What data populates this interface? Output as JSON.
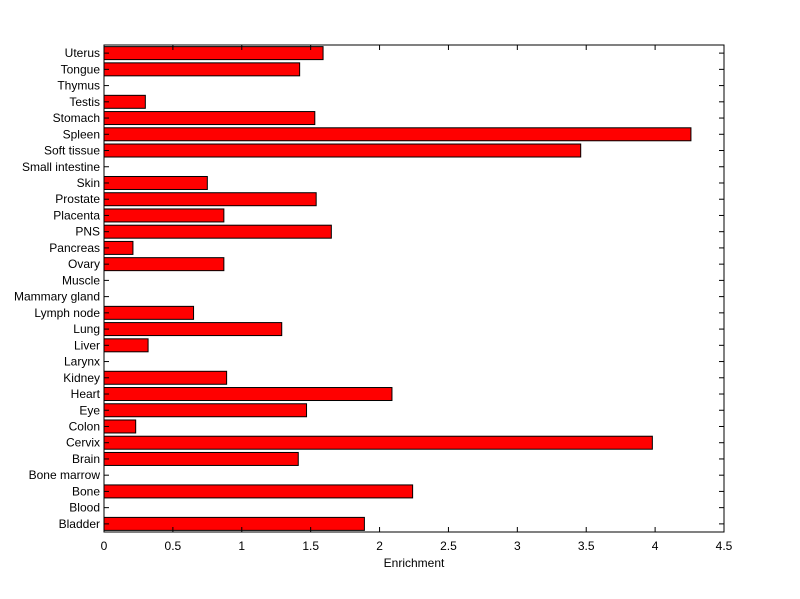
{
  "chart_data": {
    "type": "bar",
    "orientation": "horizontal",
    "title": "",
    "xlabel": "Enrichment",
    "ylabel": "",
    "xlim": [
      0,
      4.5
    ],
    "xticks": [
      0,
      0.5,
      1,
      1.5,
      2,
      2.5,
      3,
      3.5,
      4,
      4.5
    ],
    "xtick_labels": [
      "0",
      "0.5",
      "1",
      "1.5",
      "2",
      "2.5",
      "3",
      "3.5",
      "4",
      "4.5"
    ],
    "grid": false,
    "bar_color": "#ff0000",
    "edge_color": "#000000",
    "categories": [
      "Bladder",
      "Blood",
      "Bone",
      "Bone marrow",
      "Brain",
      "Cervix",
      "Colon",
      "Eye",
      "Heart",
      "Kidney",
      "Larynx",
      "Liver",
      "Lung",
      "Lymph node",
      "Mammary gland",
      "Muscle",
      "Ovary",
      "Pancreas",
      "PNS",
      "Placenta",
      "Prostate",
      "Skin",
      "Small intestine",
      "Soft tissue",
      "Spleen",
      "Stomach",
      "Testis",
      "Thymus",
      "Tongue",
      "Uterus"
    ],
    "values": [
      1.89,
      0,
      2.24,
      0,
      1.41,
      3.98,
      0.23,
      1.47,
      2.09,
      0.89,
      0,
      0.32,
      1.29,
      0.65,
      0,
      0,
      0.87,
      0.21,
      1.65,
      0.87,
      1.54,
      0.75,
      0,
      3.46,
      4.26,
      1.53,
      0.3,
      0,
      1.42,
      1.59
    ]
  }
}
